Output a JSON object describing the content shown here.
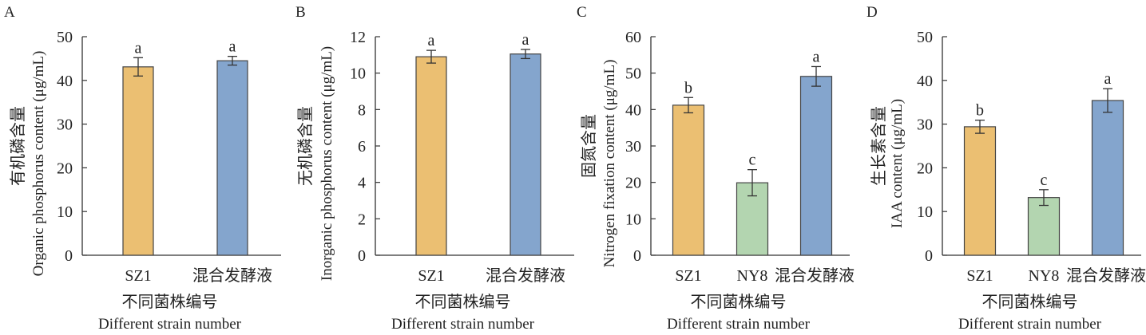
{
  "chart_data": [
    {
      "panel": "A",
      "type": "bar",
      "categories": [
        "SZ1",
        "混合发酵液"
      ],
      "values": [
        43.1,
        44.5
      ],
      "errors": [
        2.1,
        1.0
      ],
      "letters": [
        "a",
        "a"
      ],
      "colors": [
        "#ebbf72",
        "#84a5cd"
      ],
      "ylabel_cn": "有机磷含量",
      "ylabel_en": "Organic phosphorus content (μg/mL)",
      "xlabel_cn": "不同菌株编号",
      "xlabel_en": "Different strain number",
      "ylim": [
        0,
        50
      ],
      "yticks": [
        0,
        10,
        20,
        30,
        40,
        50
      ]
    },
    {
      "panel": "B",
      "type": "bar",
      "categories": [
        "SZ1",
        "混合发酵液"
      ],
      "values": [
        10.9,
        11.05
      ],
      "errors": [
        0.35,
        0.25
      ],
      "letters": [
        "a",
        "a"
      ],
      "colors": [
        "#ebbf72",
        "#84a5cd"
      ],
      "ylabel_cn": "无机磷含量",
      "ylabel_en": "Inorganic phosphorus content (μg/mL)",
      "xlabel_cn": "不同菌株编号",
      "xlabel_en": "Different strain number",
      "ylim": [
        0,
        12
      ],
      "yticks": [
        0,
        2,
        4,
        6,
        8,
        10,
        12
      ]
    },
    {
      "panel": "C",
      "type": "bar",
      "categories": [
        "SZ1",
        "NY8",
        "混合发酵液"
      ],
      "values": [
        41.2,
        19.9,
        49.1
      ],
      "errors": [
        2.1,
        3.6,
        2.7
      ],
      "letters": [
        "b",
        "c",
        "a"
      ],
      "colors": [
        "#ebbf72",
        "#b3d5b0",
        "#84a5cd"
      ],
      "ylabel_cn": "固氮含量",
      "ylabel_en": "Nitrogen fixation content (μg/mL)",
      "xlabel_cn": "不同菌株编号",
      "xlabel_en": "Different strain number",
      "ylim": [
        0,
        60
      ],
      "yticks": [
        0,
        10,
        20,
        30,
        40,
        50,
        60
      ]
    },
    {
      "panel": "D",
      "type": "bar",
      "categories": [
        "SZ1",
        "NY8",
        "混合发酵液"
      ],
      "values": [
        29.4,
        13.2,
        35.4
      ],
      "errors": [
        1.5,
        1.8,
        2.7
      ],
      "letters": [
        "b",
        "c",
        "a"
      ],
      "colors": [
        "#ebbf72",
        "#b3d5b0",
        "#84a5cd"
      ],
      "ylabel_cn": "生长素含量",
      "ylabel_en": "IAA content (μg/mL)",
      "xlabel_cn": "不同菌株编号",
      "xlabel_en": "Different strain number",
      "ylim": [
        0,
        50
      ],
      "yticks": [
        0,
        10,
        20,
        30,
        40,
        50
      ]
    }
  ]
}
